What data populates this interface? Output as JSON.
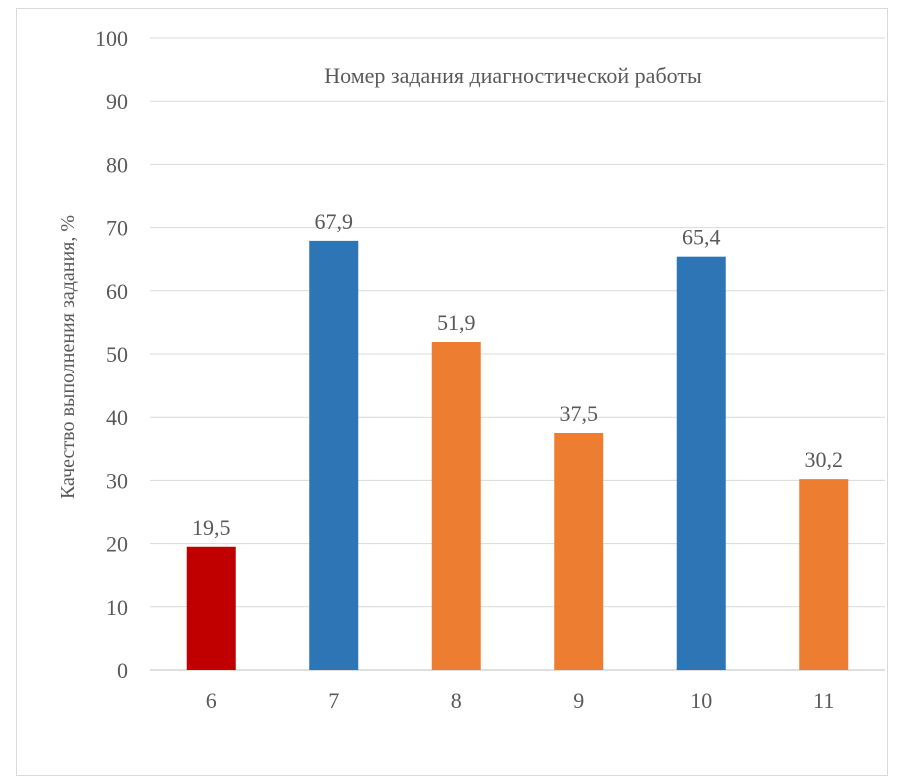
{
  "chart_data": {
    "type": "bar",
    "title": "Номер задания диагностической работы",
    "xlabel": "",
    "ylabel": "Качество выполнения задания, %",
    "categories": [
      "6",
      "7",
      "8",
      "9",
      "10",
      "11"
    ],
    "values": [
      19.5,
      67.9,
      51.9,
      37.5,
      65.4,
      30.2
    ],
    "data_labels": [
      "19,5",
      "67,9",
      "51,9",
      "37,5",
      "65,4",
      "30,2"
    ],
    "bar_colors": [
      "#c00000",
      "#2e75b6",
      "#ed7d31",
      "#ed7d31",
      "#2e75b6",
      "#ed7d31"
    ],
    "ylim": [
      0,
      100
    ],
    "yticks": [
      0,
      10,
      20,
      30,
      40,
      50,
      60,
      70,
      80,
      90,
      100
    ],
    "grid": true,
    "legend": "none"
  },
  "colors": {
    "grid": "#d9d9d9",
    "axis": "#bfbfbf",
    "text": "#595959"
  }
}
